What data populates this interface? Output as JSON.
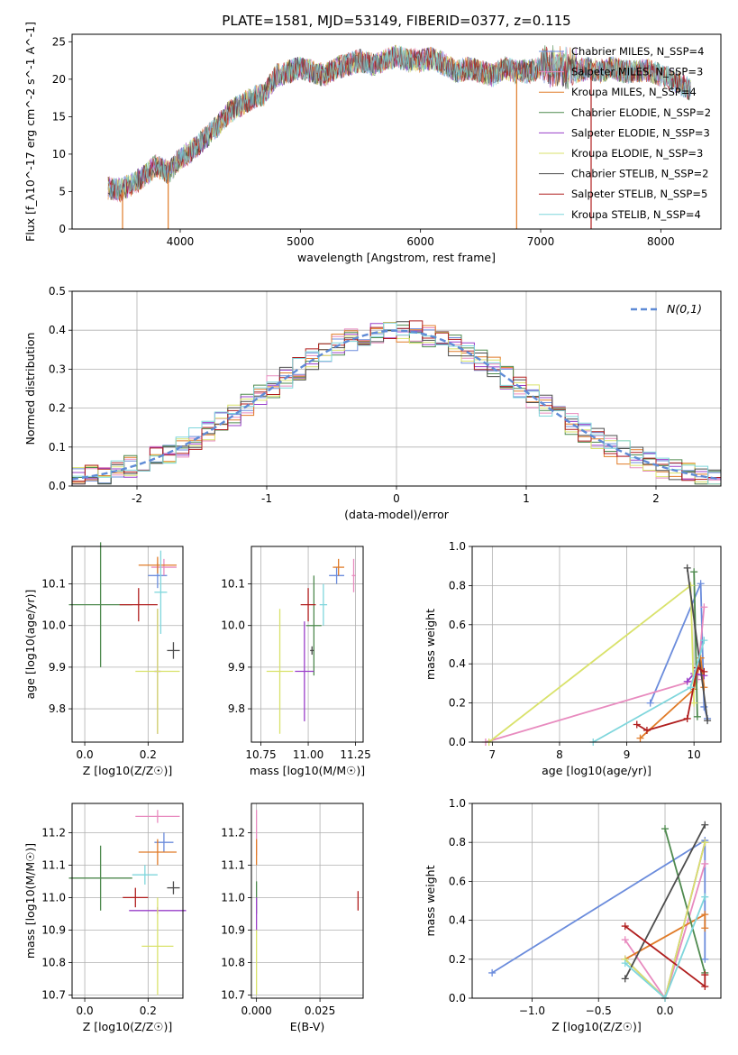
{
  "title": "PLATE=1581, MJD=53149, FIBERID=0377, z=0.115",
  "colors": {
    "chabrier_miles": "#6b8cdc",
    "salpeter_miles": "#e88bbf",
    "kroupa_miles": "#e07b28",
    "chabrier_elodie": "#4f8a4f",
    "salpeter_elodie": "#9a3fc9",
    "kroupa_elodie": "#d9e26b",
    "chabrier_stelib": "#4d4d4d",
    "salpeter_stelib": "#b01e1e",
    "kroupa_stelib": "#7fd6dc",
    "gaussian": "#5f8bd6"
  },
  "chart_data": [
    {
      "type": "line",
      "id": "spectrum",
      "title": "PLATE=1581, MJD=53149, FIBERID=0377, z=0.115",
      "xlabel": "wavelength [Angstrom, rest frame]",
      "ylabel": "Flux [f_λ10^-17 erg cm^-2 s^-1 A^-1]",
      "xlim": [
        3100,
        8500
      ],
      "ylim": [
        0,
        26
      ],
      "xticks": [
        4000,
        5000,
        6000,
        7000,
        8000
      ],
      "yticks": [
        0,
        5,
        10,
        15,
        20,
        25
      ],
      "grid": false,
      "legend": "top-right",
      "series": [
        {
          "name": "Chabrier MILES, N_SSP=4",
          "color": "#6b8cdc"
        },
        {
          "name": "Salpeter MILES, N_SSP=3",
          "color": "#e88bbf"
        },
        {
          "name": "Kroupa MILES, N_SSP=4",
          "color": "#e07b28"
        },
        {
          "name": "Chabrier ELODIE, N_SSP=2",
          "color": "#4f8a4f"
        },
        {
          "name": "Salpeter ELODIE, N_SSP=3",
          "color": "#9a3fc9"
        },
        {
          "name": "Kroupa ELODIE, N_SSP=3",
          "color": "#d9e26b"
        },
        {
          "name": "Chabrier STELIB, N_SSP=2",
          "color": "#4d4d4d"
        },
        {
          "name": "Salpeter STELIB, N_SSP=5",
          "color": "#b01e1e"
        },
        {
          "name": "Kroupa STELIB, N_SSP=4",
          "color": "#7fd6dc"
        }
      ],
      "continuum": {
        "x": [
          3400,
          3500,
          3600,
          3700,
          3800,
          3900,
          4000,
          4100,
          4200,
          4300,
          4400,
          4500,
          4600,
          4700,
          4800,
          4900,
          5000,
          5100,
          5200,
          5300,
          5400,
          5500,
          5600,
          5700,
          5800,
          5900,
          6000,
          6100,
          6200,
          6300,
          6400,
          6500,
          6600,
          6700,
          6800,
          6900,
          7000,
          7100,
          7200,
          7300,
          7400,
          7500,
          7600,
          7700,
          7800,
          7900,
          8000,
          8100,
          8200,
          8250
        ],
        "y": [
          5.5,
          5.2,
          6.0,
          7.0,
          8.5,
          7.5,
          9.5,
          10.5,
          12.0,
          13.5,
          15.5,
          16.5,
          17.5,
          18.0,
          20.5,
          21.0,
          21.5,
          21.0,
          20.5,
          21.5,
          22.0,
          22.5,
          22.0,
          22.5,
          23.0,
          22.5,
          22.5,
          22.8,
          22.0,
          21.0,
          21.5,
          21.0,
          20.5,
          21.5,
          21.0,
          21.0,
          21.5,
          21.0,
          21.0,
          21.0,
          21.5,
          21.0,
          21.5,
          21.0,
          21.0,
          21.2,
          20.5,
          20.0,
          19.0,
          18.5
        ]
      }
    },
    {
      "type": "bar",
      "id": "residuals",
      "xlabel": "(data-model)/error",
      "ylabel": "Normed distribution",
      "xlim": [
        -2.5,
        2.5
      ],
      "ylim": [
        0,
        0.5
      ],
      "xticks": [
        -2,
        -1,
        0,
        1,
        2
      ],
      "yticks": [
        0,
        0.1,
        0.2,
        0.3,
        0.4,
        0.5
      ],
      "grid": true,
      "legend": "top-right",
      "legend_label": "N(0,1)",
      "bin_width": 0.1,
      "bin_start": -2.5,
      "envelope": [
        0.01,
        0.015,
        0.02,
        0.025,
        0.03,
        0.04,
        0.05,
        0.06,
        0.07,
        0.08,
        0.09,
        0.1,
        0.12,
        0.135,
        0.15,
        0.165,
        0.18,
        0.2,
        0.22,
        0.24,
        0.26,
        0.28,
        0.3,
        0.32,
        0.34,
        0.36,
        0.37,
        0.38,
        0.39,
        0.4,
        0.41,
        0.41,
        0.4,
        0.39,
        0.38,
        0.37,
        0.35,
        0.33,
        0.31,
        0.3,
        0.28,
        0.26,
        0.24,
        0.22,
        0.2,
        0.18,
        0.16,
        0.14,
        0.12,
        0.11,
        0.09,
        0.08,
        0.07,
        0.06,
        0.05,
        0.045,
        0.04,
        0.035,
        0.03,
        0.025,
        0.02,
        0.018,
        0.015,
        0.012,
        0.01,
        0.01,
        0.01,
        0.01,
        0.01,
        0.01,
        0.01,
        0.01,
        0.01,
        0.01,
        0.01,
        0.01,
        0.01,
        0.01,
        0.01,
        0.01
      ]
    },
    {
      "type": "scatter",
      "id": "age_vs_Z",
      "xlabel": "Z [log10(Z/Z☉)]",
      "ylabel": "age [log10(age/yr)]",
      "xlim": [
        -0.04,
        0.31
      ],
      "ylim": [
        9.72,
        10.19
      ],
      "xticks": [
        0.0,
        0.2
      ],
      "xticklabels": [
        "0.0",
        "0.2"
      ],
      "yticks": [
        9.8,
        9.9,
        10.0,
        10.1
      ],
      "grid": true,
      "points": [
        {
          "series": "Chabrier MILES",
          "x": 0.23,
          "y": 10.12,
          "xerr": 0.03,
          "yerr": 0.03,
          "color": "#6b8cdc"
        },
        {
          "series": "Salpeter MILES",
          "x": 0.25,
          "y": 10.14,
          "xerr": 0.04,
          "yerr": 0.02,
          "color": "#e88bbf"
        },
        {
          "series": "Kroupa MILES",
          "x": 0.23,
          "y": 10.145,
          "xerr": 0.06,
          "yerr": 0.02,
          "color": "#e07b28"
        },
        {
          "series": "Chabrier ELODIE",
          "x": 0.05,
          "y": 10.05,
          "xerr": 0.1,
          "yerr": 0.15,
          "color": "#4f8a4f"
        },
        {
          "series": "Salpeter ELODIE",
          "x": 0.23,
          "y": 9.89,
          "xerr": 0.01,
          "yerr": 0.15,
          "color": "#9a3fc9"
        },
        {
          "series": "Kroupa ELODIE",
          "x": 0.23,
          "y": 9.89,
          "xerr": 0.07,
          "yerr": 0.15,
          "color": "#d9e26b"
        },
        {
          "series": "Chabrier STELIB",
          "x": 0.28,
          "y": 9.94,
          "xerr": 0.02,
          "yerr": 0.02,
          "color": "#4d4d4d"
        },
        {
          "series": "Salpeter STELIB",
          "x": 0.17,
          "y": 10.05,
          "xerr": 0.06,
          "yerr": 0.04,
          "color": "#b01e1e"
        },
        {
          "series": "Kroupa STELIB",
          "x": 0.24,
          "y": 10.08,
          "xerr": 0.02,
          "yerr": 0.1,
          "color": "#7fd6dc"
        }
      ]
    },
    {
      "type": "scatter",
      "id": "age_vs_mass",
      "xlabel": "mass [log10(M/M☉)]",
      "xlim": [
        10.7,
        11.29
      ],
      "ylim": [
        9.72,
        10.19
      ],
      "xticks": [
        10.75,
        11.0,
        11.25
      ],
      "xticklabels": [
        "10.75",
        "11.00",
        "11.25"
      ],
      "yticks": [
        9.8,
        9.9,
        10.0,
        10.1
      ],
      "grid": true,
      "points": [
        {
          "series": "Chabrier MILES",
          "x": 11.15,
          "y": 10.12,
          "xerr": 0.04,
          "yerr": 0.02,
          "color": "#6b8cdc"
        },
        {
          "series": "Salpeter MILES",
          "x": 11.24,
          "y": 10.12,
          "xerr": 0.01,
          "yerr": 0.04,
          "color": "#e88bbf"
        },
        {
          "series": "Kroupa MILES",
          "x": 11.16,
          "y": 10.14,
          "xerr": 0.03,
          "yerr": 0.02,
          "color": "#e07b28"
        },
        {
          "series": "Chabrier ELODIE",
          "x": 11.03,
          "y": 10.0,
          "xerr": 0.04,
          "yerr": 0.12,
          "color": "#4f8a4f"
        },
        {
          "series": "Salpeter ELODIE",
          "x": 10.98,
          "y": 9.89,
          "xerr": 0.05,
          "yerr": 0.12,
          "color": "#9a3fc9"
        },
        {
          "series": "Kroupa ELODIE",
          "x": 10.85,
          "y": 9.89,
          "xerr": 0.07,
          "yerr": 0.15,
          "color": "#d9e26b"
        },
        {
          "series": "Chabrier STELIB",
          "x": 11.02,
          "y": 9.94,
          "xerr": 0.01,
          "yerr": 0.01,
          "color": "#4d4d4d"
        },
        {
          "series": "Salpeter STELIB",
          "x": 11.0,
          "y": 10.05,
          "xerr": 0.04,
          "yerr": 0.04,
          "color": "#b01e1e"
        },
        {
          "series": "Kroupa STELIB",
          "x": 11.08,
          "y": 10.05,
          "xerr": 0.02,
          "yerr": 0.05,
          "color": "#7fd6dc"
        }
      ]
    },
    {
      "type": "line",
      "id": "massweight_vs_age",
      "xlabel": "age [log10(age/yr)]",
      "ylabel": "mass weight",
      "xlim": [
        6.7,
        10.4
      ],
      "ylim": [
        0,
        1
      ],
      "xticks": [
        7,
        8,
        9,
        10
      ],
      "yticks": [
        0.0,
        0.2,
        0.4,
        0.6,
        0.8,
        1.0
      ],
      "grid": true,
      "series": [
        {
          "name": "Chabrier MILES",
          "color": "#6b8cdc",
          "x": [
            9.35,
            10.1,
            10.15,
            10.2
          ],
          "y": [
            0.2,
            0.81,
            0.18,
            0.12
          ]
        },
        {
          "name": "Salpeter MILES",
          "color": "#e88bbf",
          "x": [
            6.9,
            10.05,
            10.15
          ],
          "y": [
            0.0,
            0.32,
            0.69
          ]
        },
        {
          "name": "Kroupa MILES",
          "color": "#e07b28",
          "x": [
            9.2,
            10.0,
            10.1,
            10.15
          ],
          "y": [
            0.02,
            0.27,
            0.43,
            0.28
          ]
        },
        {
          "name": "Chabrier ELODIE",
          "color": "#4f8a4f",
          "x": [
            10.0,
            10.05
          ],
          "y": [
            0.87,
            0.13
          ]
        },
        {
          "name": "Salpeter ELODIE",
          "color": "#9a3fc9",
          "x": [
            9.9,
            10.0,
            10.15
          ],
          "y": [
            0.31,
            0.35,
            0.34
          ]
        },
        {
          "name": "Kroupa ELODIE",
          "color": "#d9e26b",
          "x": [
            6.95,
            9.95,
            10.0
          ],
          "y": [
            0.0,
            0.8,
            0.2
          ]
        },
        {
          "name": "Chabrier STELIB",
          "color": "#4d4d4d",
          "x": [
            9.9,
            10.2
          ],
          "y": [
            0.89,
            0.11
          ]
        },
        {
          "name": "Salpeter STELIB",
          "color": "#b01e1e",
          "x": [
            9.15,
            9.3,
            9.9,
            10.05,
            10.15
          ],
          "y": [
            0.09,
            0.06,
            0.12,
            0.38,
            0.36
          ]
        },
        {
          "name": "Kroupa STELIB",
          "color": "#7fd6dc",
          "x": [
            8.5,
            9.95,
            10.15
          ],
          "y": [
            0.0,
            0.28,
            0.52
          ]
        }
      ]
    },
    {
      "type": "scatter",
      "id": "mass_vs_Z",
      "xlabel": "Z [log10(Z/Z☉)]",
      "ylabel": "mass [log10(M/M☉)]",
      "xlim": [
        -0.04,
        0.31
      ],
      "ylim": [
        10.69,
        11.29
      ],
      "xticks": [
        0.0,
        0.2
      ],
      "xticklabels": [
        "0.0",
        "0.2"
      ],
      "yticks": [
        10.7,
        10.8,
        10.9,
        11.0,
        11.1,
        11.2
      ],
      "grid": true,
      "points": [
        {
          "series": "Chabrier MILES",
          "x": 0.25,
          "y": 11.17,
          "xerr": 0.03,
          "yerr": 0.03,
          "color": "#6b8cdc"
        },
        {
          "series": "Salpeter MILES",
          "x": 0.23,
          "y": 11.25,
          "xerr": 0.07,
          "yerr": 0.02,
          "color": "#e88bbf"
        },
        {
          "series": "Kroupa MILES",
          "x": 0.23,
          "y": 11.14,
          "xerr": 0.06,
          "yerr": 0.04,
          "color": "#e07b28"
        },
        {
          "series": "Chabrier ELODIE",
          "x": 0.05,
          "y": 11.06,
          "xerr": 0.1,
          "yerr": 0.1,
          "color": "#4f8a4f"
        },
        {
          "series": "Salpeter ELODIE",
          "x": 0.23,
          "y": 10.96,
          "xerr": 0.09,
          "yerr": 0.01,
          "color": "#9a3fc9"
        },
        {
          "series": "Kroupa ELODIE",
          "x": 0.23,
          "y": 10.85,
          "xerr": 0.05,
          "yerr": 0.15,
          "color": "#d9e26b"
        },
        {
          "series": "Chabrier STELIB",
          "x": 0.28,
          "y": 11.03,
          "xerr": 0.02,
          "yerr": 0.02,
          "color": "#4d4d4d"
        },
        {
          "series": "Salpeter STELIB",
          "x": 0.16,
          "y": 11.0,
          "xerr": 0.04,
          "yerr": 0.03,
          "color": "#b01e1e"
        },
        {
          "series": "Kroupa STELIB",
          "x": 0.19,
          "y": 11.07,
          "xerr": 0.04,
          "yerr": 0.03,
          "color": "#7fd6dc"
        }
      ]
    },
    {
      "type": "scatter",
      "id": "mass_vs_ebv",
      "xlabel": "E(B-V)",
      "xlim": [
        -0.002,
        0.042
      ],
      "ylim": [
        10.69,
        11.29
      ],
      "xticks": [
        0.0,
        0.025
      ],
      "xticklabels": [
        "0.000",
        "0.025"
      ],
      "yticks": [
        10.7,
        10.8,
        10.9,
        11.0,
        11.1,
        11.2
      ],
      "grid": true,
      "points": [
        {
          "series": "Salpeter MILES",
          "x": 0.0,
          "y": 11.2,
          "yerr": 0.07,
          "color": "#e88bbf"
        },
        {
          "series": "Kroupa MILES",
          "x": 0.0,
          "y": 11.14,
          "yerr": 0.04,
          "color": "#e07b28"
        },
        {
          "series": "Chabrier ELODIE",
          "x": 0.0,
          "y": 11.0,
          "yerr": 0.05,
          "color": "#4f8a4f"
        },
        {
          "series": "Salpeter ELODIE",
          "x": 0.0,
          "y": 10.95,
          "yerr": 0.05,
          "color": "#9a3fc9"
        },
        {
          "series": "Kroupa ELODIE",
          "x": 0.0,
          "y": 10.8,
          "yerr": 0.1,
          "color": "#d9e26b"
        },
        {
          "series": "Salpeter STELIB",
          "x": 0.04,
          "y": 10.99,
          "yerr": 0.03,
          "color": "#b01e1e"
        }
      ]
    },
    {
      "type": "line",
      "id": "massweight_vs_Z",
      "xlabel": "Z [log10(Z/Z☉)]",
      "ylabel": "mass weight",
      "xlim": [
        -1.45,
        0.42
      ],
      "ylim": [
        0,
        1
      ],
      "xticks": [
        -1.0,
        -0.5,
        0.0
      ],
      "xticklabels": [
        "−1.0",
        "−0.5",
        "0.0"
      ],
      "yticks": [
        0.0,
        0.2,
        0.4,
        0.6,
        0.8,
        1.0
      ],
      "grid": true,
      "series": [
        {
          "name": "Chabrier MILES",
          "color": "#6b8cdc",
          "x": [
            -1.3,
            0.3,
            0.3
          ],
          "y": [
            0.13,
            0.81,
            0.2
          ]
        },
        {
          "name": "Salpeter MILES",
          "color": "#e88bbf",
          "x": [
            -0.3,
            0.0,
            0.3
          ],
          "y": [
            0.3,
            0.0,
            0.69
          ]
        },
        {
          "name": "Kroupa MILES",
          "color": "#e07b28",
          "x": [
            -0.3,
            0.3,
            0.3
          ],
          "y": [
            0.2,
            0.43,
            0.36
          ]
        },
        {
          "name": "Chabrier ELODIE",
          "color": "#4f8a4f",
          "x": [
            0.0,
            0.3
          ],
          "y": [
            0.87,
            0.13
          ]
        },
        {
          "name": "Salpeter ELODIE",
          "color": "#9a3fc9",
          "x": [
            -0.3,
            0.0,
            0.3
          ],
          "y": [
            0.2,
            0.0,
            0.8
          ]
        },
        {
          "name": "Kroupa ELODIE",
          "color": "#d9e26b",
          "x": [
            -0.3,
            0.0,
            0.3
          ],
          "y": [
            0.2,
            0.0,
            0.8
          ]
        },
        {
          "name": "Chabrier STELIB",
          "color": "#4d4d4d",
          "x": [
            -0.3,
            0.3
          ],
          "y": [
            0.1,
            0.89
          ]
        },
        {
          "name": "Salpeter STELIB",
          "color": "#b01e1e",
          "x": [
            -0.3,
            0.3,
            0.3
          ],
          "y": [
            0.37,
            0.06,
            0.12
          ]
        },
        {
          "name": "Kroupa STELIB",
          "color": "#7fd6dc",
          "x": [
            -0.3,
            0.0,
            0.3
          ],
          "y": [
            0.18,
            0.0,
            0.52
          ]
        }
      ]
    }
  ]
}
